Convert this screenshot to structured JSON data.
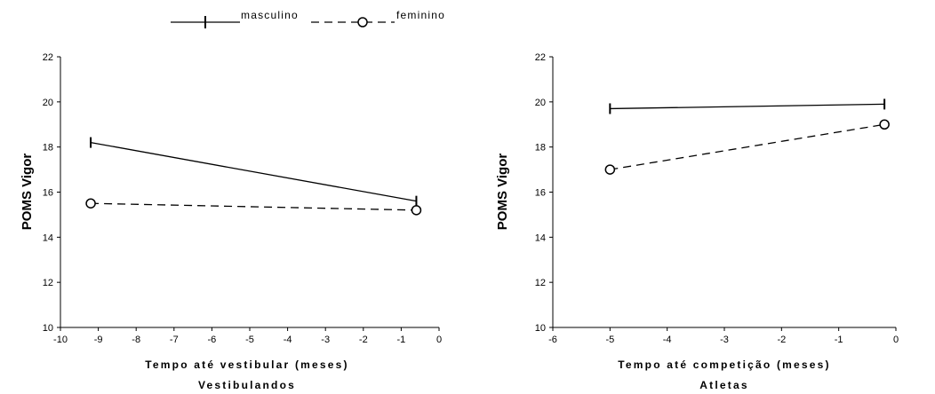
{
  "legend": {
    "male_label": "masculino",
    "female_label": "feminino"
  },
  "chart_data": [
    {
      "type": "line",
      "title": "Vestibulandos",
      "xlabel": "Tempo até vestibular (meses)",
      "ylabel": "POMS Vigor",
      "xlim": [
        -10,
        0
      ],
      "ylim": [
        10,
        22
      ],
      "xticks": [
        "-10",
        "-9",
        "-8",
        "-7",
        "-6",
        "-5",
        "-4",
        "-3",
        "-2",
        "-1",
        "0"
      ],
      "yticks": [
        "10",
        "12",
        "14",
        "16",
        "18",
        "20",
        "22"
      ],
      "series": [
        {
          "name": "masculino",
          "x": [
            -9.2,
            -0.6
          ],
          "y": [
            18.2,
            15.6
          ]
        },
        {
          "name": "feminino",
          "x": [
            -9.2,
            -0.6
          ],
          "y": [
            15.5,
            15.2
          ]
        }
      ]
    },
    {
      "type": "line",
      "title": "Atletas",
      "xlabel": "Tempo até competição (meses)",
      "ylabel": "POMS Vigor",
      "xlim": [
        -6,
        0
      ],
      "ylim": [
        10,
        22
      ],
      "xticks": [
        "-6",
        "-5",
        "-4",
        "-3",
        "-2",
        "-1",
        "0"
      ],
      "yticks": [
        "10",
        "12",
        "14",
        "16",
        "18",
        "20",
        "22"
      ],
      "series": [
        {
          "name": "masculino",
          "x": [
            -5.0,
            -0.2
          ],
          "y": [
            19.7,
            19.9
          ]
        },
        {
          "name": "feminino",
          "x": [
            -5.0,
            -0.2
          ],
          "y": [
            17.0,
            19.0
          ]
        }
      ]
    }
  ]
}
